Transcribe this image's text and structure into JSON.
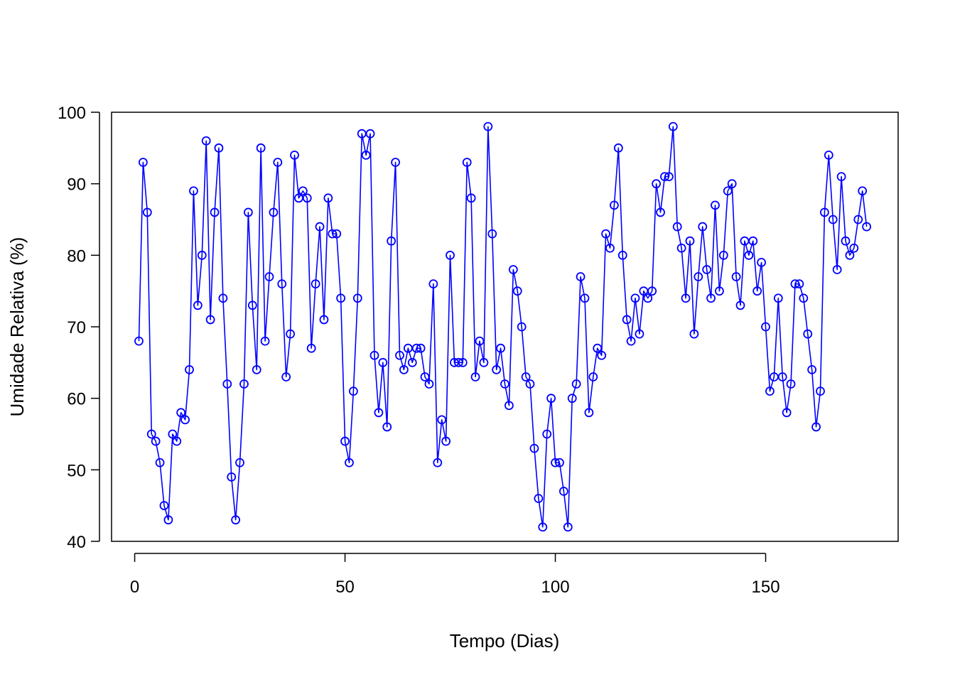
{
  "chart_data": {
    "type": "line",
    "markers": "open-circle",
    "series_color": "#0000FF",
    "xlabel": "Tempo (Dias)",
    "ylabel": "Umidade Relativa (%)",
    "xlim": [
      -5.5,
      181.5
    ],
    "ylim": [
      40,
      100
    ],
    "x_ticks": [
      0,
      50,
      100,
      150
    ],
    "y_ticks": [
      40,
      50,
      60,
      70,
      80,
      90,
      100
    ],
    "grid": false,
    "legend": "none",
    "x": [
      1,
      2,
      3,
      4,
      5,
      6,
      7,
      8,
      9,
      10,
      11,
      12,
      13,
      14,
      15,
      16,
      17,
      18,
      19,
      20,
      21,
      22,
      23,
      24,
      25,
      26,
      27,
      28,
      29,
      30,
      31,
      32,
      33,
      34,
      35,
      36,
      37,
      38,
      39,
      40,
      41,
      42,
      43,
      44,
      45,
      46,
      47,
      48,
      49,
      50,
      51,
      52,
      53,
      54,
      55,
      56,
      57,
      58,
      59,
      60,
      61,
      62,
      63,
      64,
      65,
      66,
      67,
      68,
      69,
      70,
      71,
      72,
      73,
      74,
      75,
      76,
      77,
      78,
      79,
      80,
      81,
      82,
      83,
      84,
      85,
      86,
      87,
      88,
      89,
      90,
      91,
      92,
      93,
      94,
      95,
      96,
      97,
      98,
      99,
      100,
      101,
      102,
      103,
      104,
      105,
      106,
      107,
      108,
      109,
      110,
      111,
      112,
      113,
      114,
      115,
      116,
      117,
      118,
      119,
      120,
      121,
      122,
      123,
      124,
      125,
      126,
      127,
      128,
      129,
      130,
      131,
      132,
      133,
      134,
      135,
      136,
      137,
      138,
      139,
      140,
      141,
      142,
      143,
      144,
      145,
      146,
      147,
      148,
      149,
      150,
      151,
      152,
      153,
      154,
      155,
      156,
      157,
      158,
      159,
      160,
      161,
      162,
      163,
      164,
      165,
      166,
      167,
      168,
      169,
      170,
      171,
      172,
      173,
      174
    ],
    "y": [
      68,
      93,
      86,
      55,
      54,
      51,
      45,
      43,
      55,
      54,
      58,
      57,
      64,
      89,
      73,
      80,
      96,
      71,
      86,
      95,
      74,
      62,
      49,
      43,
      51,
      62,
      86,
      73,
      64,
      95,
      68,
      77,
      86,
      93,
      76,
      63,
      69,
      94,
      88,
      89,
      88,
      67,
      76,
      84,
      71,
      88,
      83,
      83,
      74,
      54,
      51,
      61,
      74,
      97,
      94,
      97,
      66,
      58,
      65,
      56,
      82,
      93,
      66,
      64,
      67,
      65,
      67,
      67,
      63,
      62,
      76,
      51,
      57,
      54,
      80,
      65,
      65,
      65,
      93,
      88,
      63,
      68,
      65,
      98,
      83,
      64,
      67,
      62,
      59,
      78,
      75,
      70,
      63,
      62,
      53,
      46,
      42,
      55,
      60,
      51,
      51,
      47,
      42,
      60,
      62,
      77,
      74,
      58,
      63,
      67,
      66,
      83,
      81,
      87,
      95,
      80,
      71,
      68,
      74,
      69,
      75,
      74,
      75,
      90,
      86,
      91,
      91,
      98,
      84,
      81,
      74,
      82,
      69,
      77,
      84,
      78,
      74,
      87,
      75,
      80,
      89,
      90,
      77,
      73,
      82,
      80,
      82,
      75,
      79,
      70,
      61,
      63,
      74,
      63,
      58,
      62,
      76,
      76,
      74,
      69,
      64,
      56,
      61,
      86,
      94,
      85,
      78,
      91,
      82,
      80,
      81,
      85,
      89,
      84
    ]
  }
}
